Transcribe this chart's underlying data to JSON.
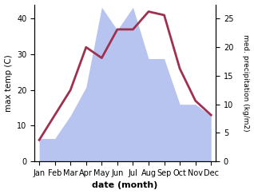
{
  "months": [
    "Jan",
    "Feb",
    "Mar",
    "Apr",
    "May",
    "Jun",
    "Jul",
    "Aug",
    "Sep",
    "Oct",
    "Nov",
    "Dec"
  ],
  "temp": [
    6,
    13,
    20,
    32,
    29,
    37,
    37,
    42,
    41,
    26,
    17,
    13
  ],
  "precip": [
    4,
    4,
    8,
    13,
    27,
    23,
    27,
    18,
    18,
    10,
    10,
    8
  ],
  "temp_color": "#a03050",
  "precip_fill_color": "#b8c4f0",
  "ylabel_left": "max temp (C)",
  "ylabel_right": "med. precipitation (kg/m2)",
  "xlabel": "date (month)",
  "ylim_left": [
    0,
    44
  ],
  "ylim_right": [
    0,
    27.5
  ],
  "left_ticks": [
    0,
    10,
    20,
    30,
    40
  ],
  "right_ticks": [
    0,
    5,
    10,
    15,
    20,
    25
  ],
  "bg_color": "#ffffff",
  "temp_linewidth": 2.0
}
